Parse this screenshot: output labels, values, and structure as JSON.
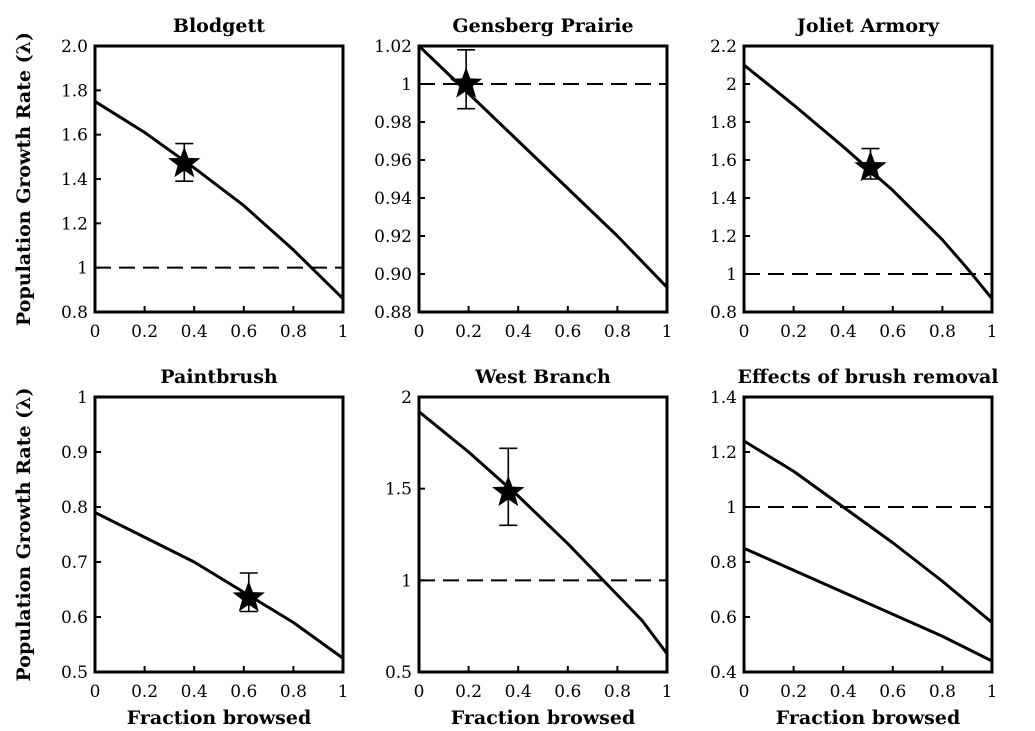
{
  "chart_data": [
    {
      "type": "line",
      "title": "Blodgett",
      "ylabel": "Population Growth Rate (λ)",
      "xlabel": "",
      "xlim": [
        0,
        1
      ],
      "ylim": [
        0.8,
        2.0
      ],
      "xticks": [
        "0",
        "0.2",
        "0.4",
        "0.6",
        "0.8",
        "1"
      ],
      "yticks": [
        "0.8",
        "1",
        "1.2",
        "1.4",
        "1.6",
        "1.8",
        "2.0"
      ],
      "reference_line": 1,
      "series": [
        {
          "x": [
            0,
            0.2,
            0.4,
            0.6,
            0.8,
            0.9,
            1
          ],
          "y": [
            1.75,
            1.61,
            1.45,
            1.28,
            1.08,
            0.97,
            0.86
          ]
        }
      ],
      "observed": {
        "x": 0.36,
        "y": 1.47,
        "err_low": 1.39,
        "err_high": 1.56
      }
    },
    {
      "type": "line",
      "title": "Gensberg  Prairie",
      "ylabel": "",
      "xlabel": "",
      "xlim": [
        0,
        1
      ],
      "ylim": [
        0.88,
        1.02
      ],
      "xticks": [
        "0",
        "0.2",
        "0.4",
        "0.6",
        "0.8",
        "1"
      ],
      "yticks": [
        "0.88",
        "0.90",
        "0.92",
        "0.94",
        "0.96",
        "0.98",
        "1",
        "1.02"
      ],
      "reference_line": 1,
      "series": [
        {
          "x": [
            0,
            0.2,
            0.4,
            0.6,
            0.8,
            1
          ],
          "y": [
            1.02,
            0.995,
            0.97,
            0.945,
            0.92,
            0.893
          ]
        }
      ],
      "observed": {
        "x": 0.19,
        "y": 1.0,
        "err_low": 0.987,
        "err_high": 1.018
      }
    },
    {
      "type": "line",
      "title": "Joliet Armory",
      "ylabel": "",
      "xlabel": "",
      "xlim": [
        0,
        1
      ],
      "ylim": [
        0.8,
        2.2
      ],
      "xticks": [
        "0",
        "0.2",
        "0.4",
        "0.6",
        "0.8",
        "1"
      ],
      "yticks": [
        "0.8",
        "1",
        "1.2",
        "1.4",
        "1.6",
        "1.8",
        "2",
        "2.2"
      ],
      "reference_line": 1,
      "series": [
        {
          "x": [
            0,
            0.2,
            0.4,
            0.6,
            0.8,
            0.9,
            1
          ],
          "y": [
            2.1,
            1.89,
            1.67,
            1.44,
            1.18,
            1.03,
            0.87
          ]
        }
      ],
      "observed": {
        "x": 0.51,
        "y": 1.56,
        "err_low": 1.5,
        "err_high": 1.66
      }
    },
    {
      "type": "line",
      "title": "Paintbrush",
      "ylabel": "Population Growth Rate (λ)",
      "xlabel": "Fraction browsed",
      "xlim": [
        0,
        1
      ],
      "ylim": [
        0.5,
        1.0
      ],
      "xticks": [
        "0",
        "0.2",
        "0.4",
        "0.6",
        "0.8",
        "1"
      ],
      "yticks": [
        "0.5",
        "0.6",
        "0.7",
        "0.8",
        "0.9",
        "1"
      ],
      "reference_line": null,
      "series": [
        {
          "x": [
            0,
            0.2,
            0.4,
            0.6,
            0.8,
            1
          ],
          "y": [
            0.79,
            0.745,
            0.7,
            0.645,
            0.59,
            0.525
          ]
        }
      ],
      "observed": {
        "x": 0.62,
        "y": 0.635,
        "err_low": 0.61,
        "err_high": 0.68
      }
    },
    {
      "type": "line",
      "title": "West Branch",
      "ylabel": "",
      "xlabel": "Fraction browsed",
      "xlim": [
        0,
        1
      ],
      "ylim": [
        0.5,
        2.0
      ],
      "xticks": [
        "0",
        "0.2",
        "0.4",
        "0.6",
        "0.8",
        "1"
      ],
      "yticks": [
        "0.5",
        "1",
        "1.5",
        "2"
      ],
      "reference_line": 1,
      "series": [
        {
          "x": [
            0,
            0.2,
            0.4,
            0.6,
            0.8,
            0.9,
            1
          ],
          "y": [
            1.92,
            1.7,
            1.46,
            1.2,
            0.92,
            0.78,
            0.6
          ]
        }
      ],
      "observed": {
        "x": 0.36,
        "y": 1.48,
        "err_low": 1.3,
        "err_high": 1.72
      }
    },
    {
      "type": "line",
      "title": "Effects of brush removal",
      "ylabel": "",
      "xlabel": "Fraction browsed",
      "xlim": [
        0,
        1
      ],
      "ylim": [
        0.4,
        1.4
      ],
      "xticks": [
        "0",
        "0.2",
        "0.4",
        "0.6",
        "0.8",
        "1"
      ],
      "yticks": [
        "0.4",
        "0.6",
        "0.8",
        "1",
        "1.2",
        "1.4"
      ],
      "reference_line": 1,
      "series": [
        {
          "x": [
            0,
            0.2,
            0.4,
            0.6,
            0.8,
            1
          ],
          "y": [
            1.24,
            1.13,
            1.0,
            0.87,
            0.73,
            0.58
          ]
        },
        {
          "x": [
            0,
            0.2,
            0.4,
            0.6,
            0.8,
            1
          ],
          "y": [
            0.85,
            0.77,
            0.69,
            0.61,
            0.53,
            0.44
          ]
        }
      ],
      "observed": null
    }
  ]
}
